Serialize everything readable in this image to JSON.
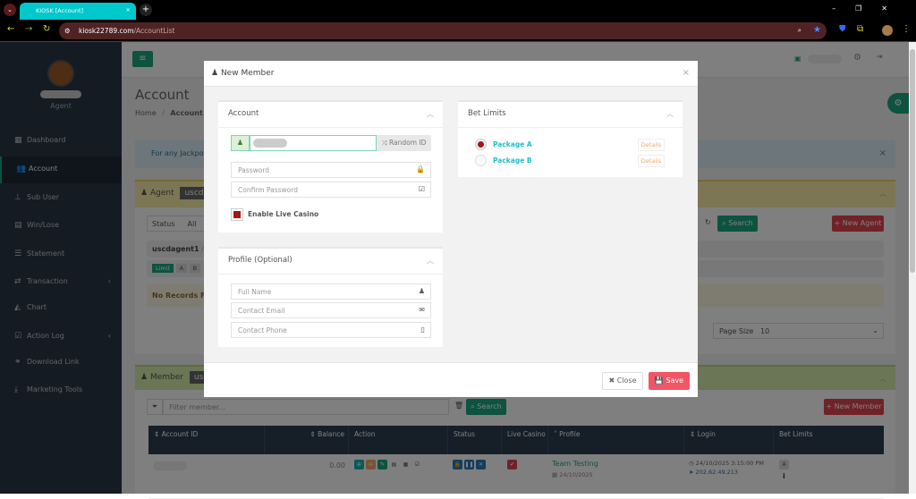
{
  "browser": {
    "tab_title": "KIOSK [Account]",
    "url_host": "kiosk22789.com",
    "url_path": "/AccountList"
  },
  "sidebar": {
    "role": "Agent",
    "items": [
      {
        "label": "Dashboard",
        "icon": "dashboard-icon"
      },
      {
        "label": "Account",
        "icon": "users-icon",
        "active": true
      },
      {
        "label": "Sub User",
        "icon": "sitemap-icon"
      },
      {
        "label": "Win/Lose",
        "icon": "table-icon"
      },
      {
        "label": "Statement",
        "icon": "list-icon"
      },
      {
        "label": "Transaction",
        "icon": "exchange-icon",
        "chevron": "‹"
      },
      {
        "label": "Chart",
        "icon": "area-chart-icon"
      },
      {
        "label": "Action Log",
        "icon": "calendar-check-icon",
        "chevron": "‹"
      },
      {
        "label": "Download Link",
        "icon": "link-icon"
      },
      {
        "label": "Marketing Tools",
        "icon": "download-icon"
      }
    ]
  },
  "page": {
    "title": "Account",
    "breadcrumb": [
      "Home",
      "/",
      "Account List"
    ],
    "alert": "For any Jackpot",
    "alert_close": "×"
  },
  "agent_panel": {
    "title": "Agent",
    "badge": "uscda",
    "status_label": "Status",
    "status_value": "All",
    "search": "Search",
    "new_agent": "New Agent",
    "path": "uscdagent1",
    "path_sep": "/",
    "limit": "Limit",
    "limit_a": "A",
    "limit_b": "B",
    "no_records": "No Records Found",
    "page_size_label": "Page Size",
    "page_size": "10"
  },
  "member_panel": {
    "title": "Member",
    "badge": "usc",
    "filter_placeholder": "Filter member...",
    "search": "Search",
    "new_member": "New Member",
    "columns": [
      "Account ID",
      "Balance",
      "Action",
      "Status",
      "Live Casino",
      "Profile",
      "Login",
      "Bet Limits"
    ],
    "rows": [
      {
        "balance": "0.00",
        "profile_name": "Team Testing",
        "profile_date": "24/10/2025",
        "login_time": "24/10/2025 3:15:00 PM",
        "login_ip": "202.62.49.213",
        "bet_limit": "A",
        "bet_info": "i"
      }
    ]
  },
  "modal": {
    "title": "New Member",
    "close_x": "×",
    "account": {
      "title": "Account",
      "random_id": "Random ID",
      "password_placeholder": "Password",
      "confirm_placeholder": "Confirm Password",
      "live_casino_label": "Enable Live Casino",
      "live_casino_checked": true
    },
    "profile": {
      "title": "Profile (Optional)",
      "full_name_placeholder": "Full Name",
      "email_placeholder": "Contact Email",
      "phone_placeholder": "Contact Phone"
    },
    "bet_limits": {
      "title": "Bet Limits",
      "packages": [
        {
          "name": "Package A",
          "selected": true,
          "details": "Details"
        },
        {
          "name": "Package B",
          "selected": false,
          "details": "Details"
        }
      ]
    },
    "close": "Close",
    "save": "Save"
  },
  "colors": {
    "accent": "#1aa67f",
    "danger": "#e0454f",
    "tab": "#00c8cc",
    "sidebar": "#2a3744",
    "table_header": "#2c3e50"
  }
}
